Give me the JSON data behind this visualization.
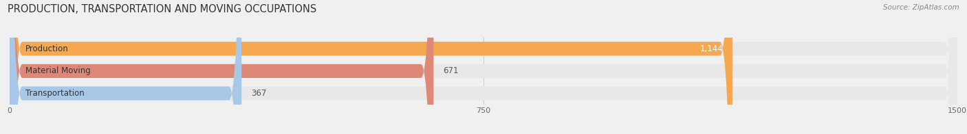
{
  "title": "PRODUCTION, TRANSPORTATION AND MOVING OCCUPATIONS",
  "source": "Source: ZipAtlas.com",
  "categories": [
    "Production",
    "Material Moving",
    "Transportation"
  ],
  "values": [
    1144,
    671,
    367
  ],
  "bar_colors": [
    "#F5A850",
    "#E08878",
    "#A8C8E8"
  ],
  "xlim": [
    0,
    1500
  ],
  "xticks": [
    0,
    750,
    1500
  ],
  "background_color": "#F0F0F0",
  "bar_bg_color": "#E8E8E8",
  "title_fontsize": 10.5,
  "label_fontsize": 8.5,
  "value_fontsize": 8.5,
  "bar_height": 0.62,
  "value_inside_color": "#FFFFFF",
  "value_outside_color": "#555555",
  "label_color": "#333333"
}
